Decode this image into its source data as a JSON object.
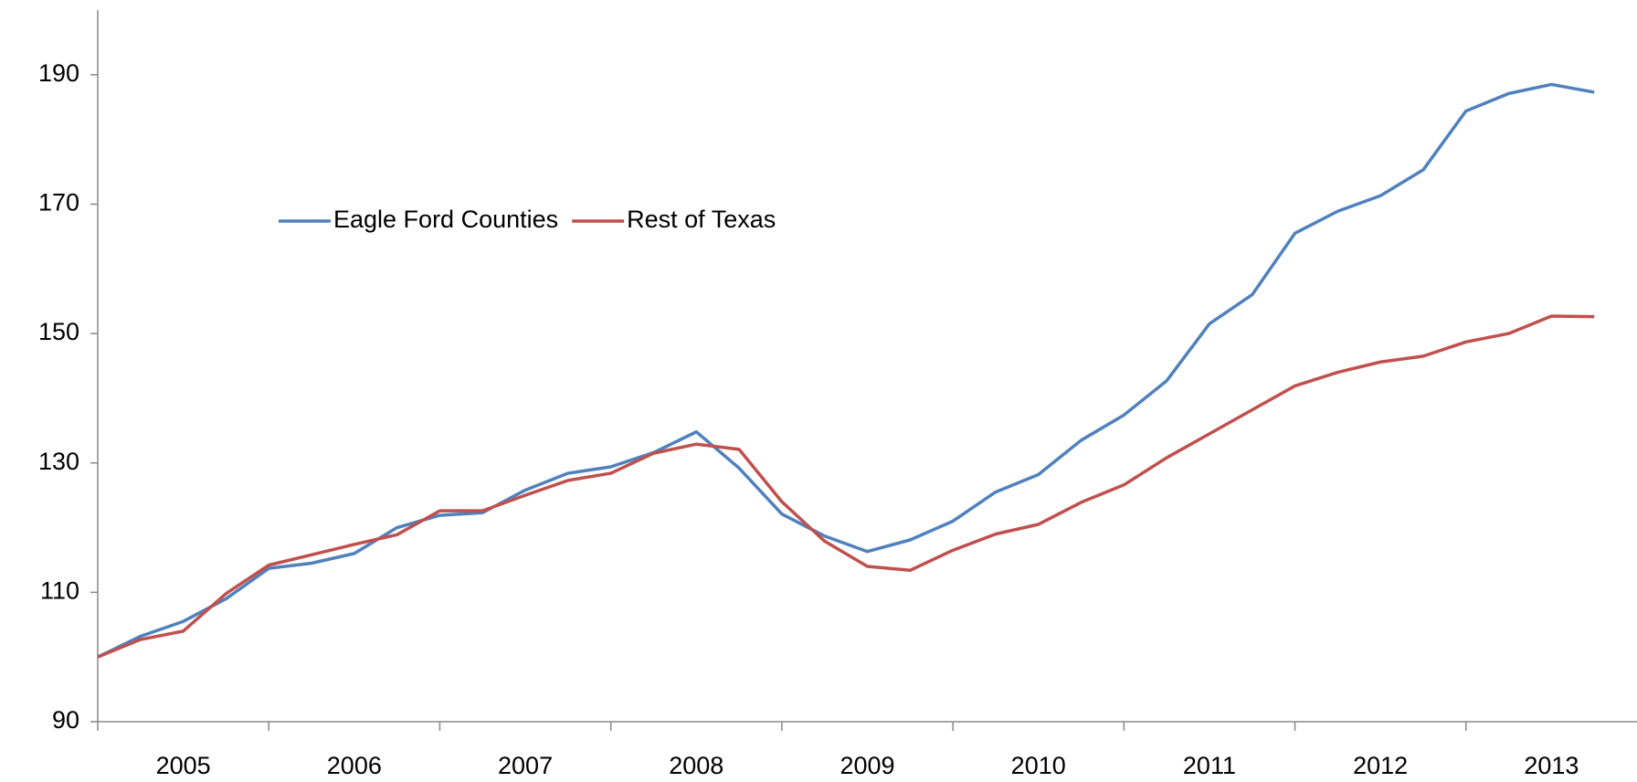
{
  "chart_data": {
    "type": "line",
    "categories": [
      "2005",
      null,
      null,
      null,
      "2006",
      null,
      null,
      null,
      "2007",
      null,
      null,
      null,
      "2008",
      null,
      null,
      null,
      "2009",
      null,
      null,
      null,
      "2010",
      null,
      null,
      null,
      "2011",
      null,
      null,
      null,
      "2012",
      null,
      null,
      null,
      "2013",
      null,
      null,
      null
    ],
    "series": [
      {
        "name": "Eagle Ford Counties",
        "color": "#4f81bd",
        "values": [
          100,
          103.2,
          105.5,
          109,
          113.7,
          114.5,
          116,
          120,
          121.9,
          122.3,
          125.8,
          128.4,
          129.4,
          131.6,
          134.8,
          129.2,
          122.1,
          118.7,
          116.3,
          118.1,
          121,
          125.5,
          128.2,
          133.5,
          137.4,
          142.7,
          151.5,
          156,
          165.5,
          168.9,
          171.3,
          175.3,
          184.4,
          187.1,
          188.5,
          187.3
        ]
      },
      {
        "name": "Rest of Texas",
        "color": "#c0504d",
        "values": [
          100,
          102.7,
          104,
          109.8,
          114.2,
          115.8,
          117.4,
          118.9,
          122.6,
          122.6,
          125,
          127.3,
          128.4,
          131.5,
          132.9,
          132.1,
          124,
          117.9,
          114,
          113.4,
          116.5,
          119,
          120.5,
          123.9,
          126.6,
          130.8,
          134.5,
          138.2,
          141.9,
          144,
          145.6,
          146.5,
          148.7,
          150,
          152.7,
          152.6
        ]
      }
    ],
    "ylim": [
      90,
      200
    ],
    "yticks": [
      90,
      110,
      130,
      150,
      170,
      190
    ],
    "grid": false,
    "legend": "upper left"
  }
}
